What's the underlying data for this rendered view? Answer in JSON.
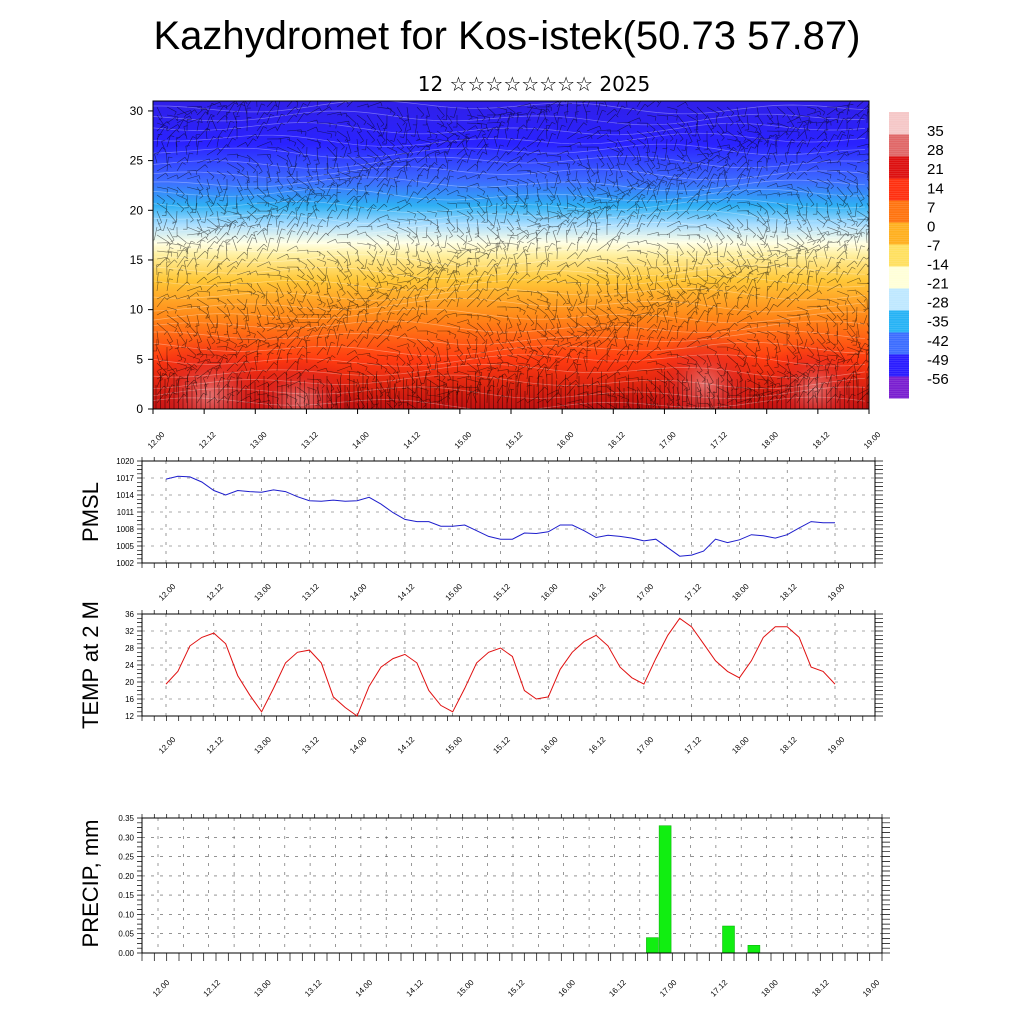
{
  "page": {
    "title": "Kazhydromet for Kos-istek(50.73 57.87)",
    "subtitle": "12 ☆☆☆☆☆☆☆☆ 2025"
  },
  "time_labels": [
    "12.00",
    "12.12",
    "13.00",
    "13.12",
    "14.00",
    "14.12",
    "15.00",
    "15.12",
    "16.00",
    "16.12",
    "17.00",
    "17.12",
    "18.00",
    "18.12",
    "19.00"
  ],
  "chart_data": [
    {
      "type": "heatmap",
      "name": "cross-section",
      "x": [
        "12.00",
        "12.12",
        "13.00",
        "13.12",
        "14.00",
        "14.12",
        "15.00",
        "15.12",
        "16.00",
        "16.12",
        "17.00",
        "17.12",
        "18.00",
        "18.12",
        "19.00"
      ],
      "y_ticks": [
        0,
        5,
        10,
        15,
        20,
        25,
        30
      ],
      "ylim": [
        0,
        31
      ],
      "colorbar_labels": [
        "35",
        "28",
        "21",
        "14",
        "7",
        "0",
        "-7",
        "-14",
        "-21",
        "-28",
        "-35",
        "-42",
        "-49",
        "-56"
      ],
      "colorbar_range": [
        -63,
        42
      ],
      "colors": [
        "#7a1fd0",
        "#2a1cff",
        "#3d6dff",
        "#27b3f5",
        "#bfe8ff",
        "#ffffd8",
        "#ffe060",
        "#ffb020",
        "#ff7410",
        "#ff3010",
        "#dd1010",
        "#e06868",
        "#f5c8c8"
      ]
    },
    {
      "type": "line",
      "name": "pmsl",
      "ylabel": "PMSL",
      "ylim": [
        1002,
        1020
      ],
      "yticks": [
        1002,
        1005,
        1008,
        1011,
        1014,
        1017,
        1020
      ],
      "line_color": "#1d1dcc",
      "values": [
        1016.8,
        1017.3,
        1017.2,
        1016.3,
        1014.8,
        1014.0,
        1014.8,
        1014.6,
        1014.5,
        1014.9,
        1014.6,
        1013.7,
        1013.0,
        1012.9,
        1013.1,
        1012.9,
        1013.0,
        1013.6,
        1012.4,
        1010.9,
        1009.7,
        1009.3,
        1009.3,
        1008.5,
        1008.5,
        1008.7,
        1007.7,
        1006.7,
        1006.2,
        1006.2,
        1007.3,
        1007.2,
        1007.5,
        1008.7,
        1008.7,
        1007.7,
        1006.5,
        1006.9,
        1006.7,
        1006.4,
        1005.9,
        1006.2,
        1004.7,
        1003.2,
        1003.4,
        1004.1,
        1006.2,
        1005.6,
        1006.1,
        1007.0,
        1006.8,
        1006.4,
        1007.0,
        1008.2,
        1009.3,
        1009.1,
        1009.1
      ]
    },
    {
      "type": "line",
      "name": "temp",
      "ylabel": "TEMP at 2 M",
      "ylim": [
        12,
        36
      ],
      "yticks": [
        12,
        16,
        20,
        24,
        28,
        32,
        36
      ],
      "line_color": "#e01010",
      "values": [
        19.5,
        22.5,
        28.5,
        30.5,
        31.5,
        29.0,
        21.5,
        17.0,
        13.0,
        18.5,
        24.5,
        27.0,
        27.5,
        24.5,
        16.5,
        14.0,
        12.0,
        19.0,
        23.5,
        25.5,
        26.5,
        24.5,
        18.0,
        14.5,
        13.0,
        18.5,
        24.5,
        27.0,
        28.0,
        26.0,
        18.0,
        16.0,
        16.5,
        23.0,
        27.0,
        29.5,
        31.0,
        28.5,
        23.5,
        21.0,
        19.5,
        25.5,
        31.0,
        35.0,
        33.0,
        29.0,
        25.0,
        22.5,
        21.0,
        25.0,
        30.5,
        33.0,
        33.0,
        30.5,
        23.5,
        22.5,
        19.5
      ]
    },
    {
      "type": "bar",
      "name": "precip",
      "ylabel": "PRECIP, mm",
      "ylim": [
        0,
        0.35
      ],
      "yticks": [
        "0.00",
        "0.05",
        "0.10",
        "0.15",
        "0.20",
        "0.25",
        "0.30",
        "0.35"
      ],
      "bar_color": "#11ee11",
      "bars": [
        {
          "t": 16.875,
          "value": 0.04
        },
        {
          "t": 17.0,
          "value": 0.33
        },
        {
          "t": 17.625,
          "value": 0.07
        },
        {
          "t": 17.875,
          "value": 0.02
        }
      ]
    }
  ]
}
